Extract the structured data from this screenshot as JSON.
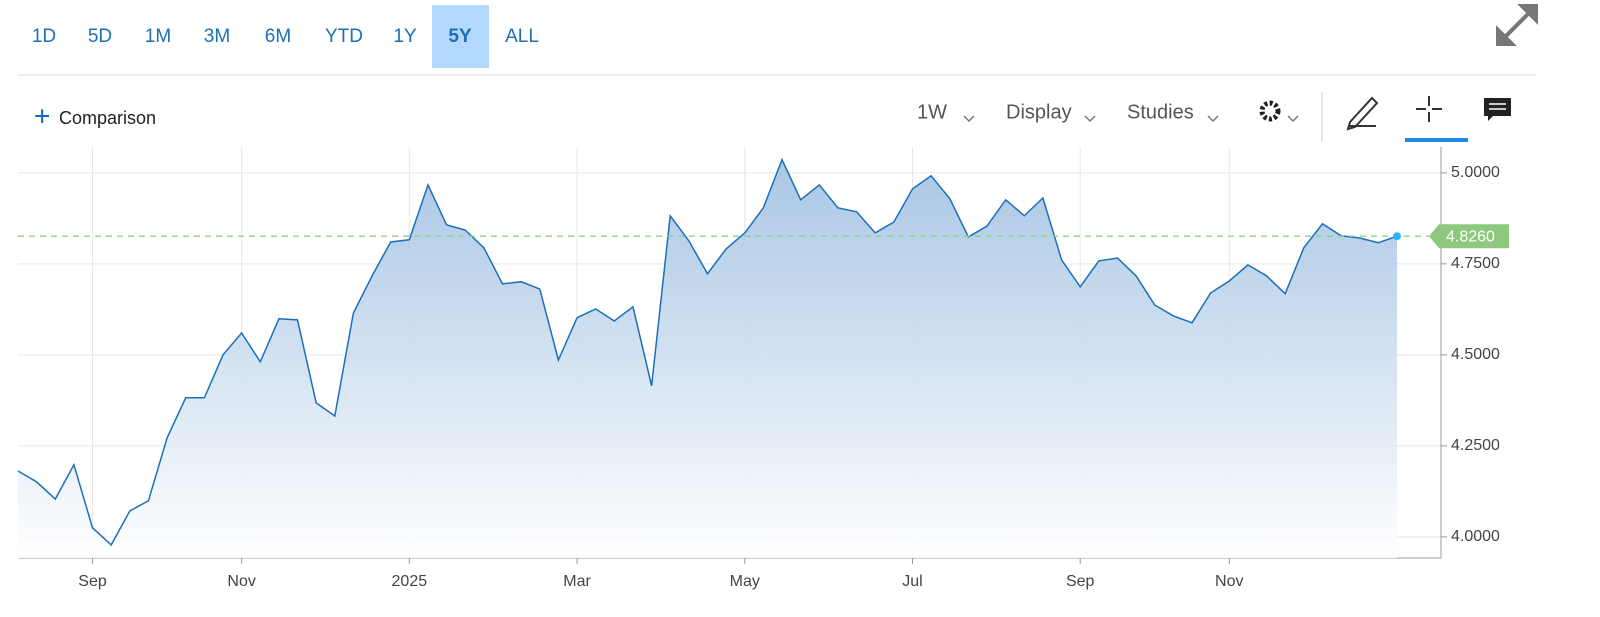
{
  "toolbar": {
    "ranges": [
      "1D",
      "5D",
      "1M",
      "3M",
      "6M",
      "YTD",
      "1Y",
      "5Y",
      "ALL"
    ],
    "active_range": "5Y",
    "comparison": "Comparison",
    "interval": "1W",
    "display": "Display",
    "studies": "Studies"
  },
  "chart_data": {
    "type": "area",
    "color": "#1b6fbb",
    "categories": [
      null,
      null,
      null,
      null,
      "Sep",
      null,
      null,
      null,
      null,
      null,
      null,
      null,
      "Nov",
      null,
      null,
      null,
      null,
      null,
      null,
      null,
      null,
      "2025",
      null,
      null,
      null,
      null,
      null,
      null,
      null,
      null,
      "Mar",
      null,
      null,
      null,
      null,
      null,
      null,
      null,
      null,
      "May",
      null,
      null,
      null,
      null,
      null,
      null,
      null,
      null,
      "Jul",
      null,
      null,
      null,
      null,
      null,
      null,
      null,
      null,
      "Sep",
      null,
      null,
      null,
      null,
      null,
      null,
      null,
      "Nov",
      null,
      null,
      null,
      null,
      null,
      null,
      null,
      null,
      null
    ],
    "values": [
      4.181,
      4.151,
      4.104,
      4.198,
      4.025,
      3.978,
      4.071,
      4.099,
      4.272,
      4.382,
      4.382,
      4.5,
      4.56,
      4.481,
      4.599,
      4.596,
      4.368,
      4.332,
      4.615,
      4.717,
      4.81,
      4.816,
      4.967,
      4.857,
      4.843,
      4.794,
      4.695,
      4.701,
      4.681,
      4.486,
      4.602,
      4.626,
      4.593,
      4.632,
      4.415,
      4.882,
      4.813,
      4.723,
      4.791,
      4.835,
      4.904,
      5.036,
      4.926,
      4.967,
      4.904,
      4.893,
      4.835,
      4.865,
      4.956,
      4.992,
      4.929,
      4.824,
      4.854,
      4.926,
      4.882,
      4.931,
      4.761,
      4.687,
      4.758,
      4.766,
      4.717,
      4.637,
      4.607,
      4.588,
      4.67,
      4.703,
      4.747,
      4.717,
      4.668,
      4.794,
      4.86,
      4.827,
      4.821,
      4.808,
      4.826
    ],
    "last_price": {
      "value": 4.826,
      "label": "4.8260"
    },
    "ylim": [
      3.942,
      5.071
    ],
    "yticks": [
      {
        "value": 4,
        "label": "4.0000"
      },
      {
        "value": 4.25,
        "label": "4.2500"
      },
      {
        "value": 4.5,
        "label": "4.5000"
      },
      {
        "value": 4.75,
        "label": "4.7500"
      },
      {
        "value": 5,
        "label": "5.0000"
      }
    ],
    "grid": true
  }
}
